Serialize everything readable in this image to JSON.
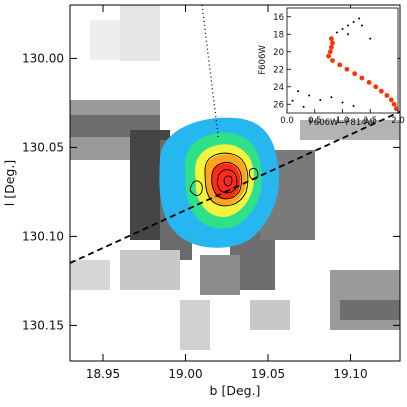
{
  "chart_data": [
    {
      "type": "heatmap",
      "title": "",
      "xlabel": "b [Deg.]",
      "ylabel": "l [Deg.]",
      "xlim": [
        18.93,
        19.13
      ],
      "ylim": [
        130.17,
        129.97
      ],
      "x_ticks": [
        18.95,
        19.0,
        19.05,
        19.1
      ],
      "x_tick_labels": [
        "18.95",
        "19.00",
        "19.05",
        "19.10"
      ],
      "y_ticks": [
        130.0,
        130.05,
        130.1,
        130.15
      ],
      "y_tick_labels": [
        "130.00",
        "130.05",
        "130.10",
        "130.15"
      ],
      "density_peak": {
        "b": 19.025,
        "l": 130.068
      },
      "filled_contour_levels": [
        "deepskyblue",
        "lime",
        "yellow",
        "orange",
        "red"
      ],
      "dashed_line": [
        {
          "b": 18.93,
          "l": 130.115
        },
        {
          "b": 19.13,
          "l": 130.03
        }
      ],
      "dotted_line": [
        {
          "b": 19.01,
          "l": 129.97
        },
        {
          "b": 19.02,
          "l": 130.045
        }
      ],
      "grid": false
    },
    {
      "type": "scatter",
      "title": "",
      "xlabel": "F606W−F814W",
      "ylabel": "F606W",
      "xlim": [
        0.0,
        2.0
      ],
      "ylim": [
        27,
        15
      ],
      "x_ticks": [
        0.0,
        0.5,
        1.0,
        1.5,
        2.0
      ],
      "x_tick_labels": [
        "0.0",
        "0.5",
        "1.0",
        "1.5",
        "2.0"
      ],
      "y_ticks": [
        16,
        18,
        20,
        22,
        24,
        26
      ],
      "y_tick_labels": [
        "16",
        "18",
        "20",
        "22",
        "24",
        "26"
      ],
      "series": [
        {
          "color": "#ff3300",
          "points": [
            [
              0.8,
              18.5
            ],
            [
              0.82,
              19.0
            ],
            [
              0.8,
              19.5
            ],
            [
              0.78,
              20.0
            ],
            [
              0.75,
              20.5
            ],
            [
              0.82,
              21.0
            ],
            [
              0.95,
              21.5
            ],
            [
              1.08,
              22.0
            ],
            [
              1.22,
              22.5
            ],
            [
              1.35,
              23.0
            ],
            [
              1.48,
              23.5
            ],
            [
              1.6,
              24.0
            ],
            [
              1.7,
              24.5
            ],
            [
              1.8,
              25.0
            ],
            [
              1.88,
              25.5
            ],
            [
              1.93,
              26.0
            ],
            [
              1.97,
              26.5
            ]
          ]
        },
        {
          "color": "#000000",
          "points": [
            [
              1.3,
              16.2
            ],
            [
              1.2,
              16.6
            ],
            [
              1.1,
              17.0
            ],
            [
              1.0,
              17.4
            ],
            [
              0.9,
              17.8
            ],
            [
              1.35,
              17.0
            ],
            [
              1.1,
              18.0
            ],
            [
              1.5,
              18.5
            ],
            [
              0.2,
              24.5
            ],
            [
              0.4,
              25.0
            ],
            [
              0.6,
              25.5
            ],
            [
              0.8,
              25.2
            ],
            [
              1.0,
              25.8
            ],
            [
              1.2,
              26.2
            ],
            [
              0.3,
              26.3
            ],
            [
              0.1,
              25.6
            ]
          ]
        }
      ],
      "grid": false
    }
  ]
}
